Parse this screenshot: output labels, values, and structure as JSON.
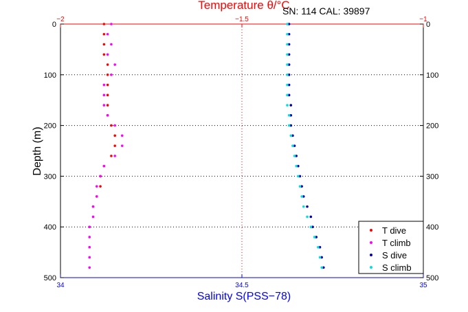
{
  "chart_data": {
    "type": "scatter",
    "title_top": "Temperature θ/°C",
    "top_axis_color": "#ff0000",
    "bottom_axis_color": "#0000ff",
    "annotation": "SN: 114  CAL: 39897",
    "ylabel": "Depth (m)",
    "xlabel_bottom": "Salinity S(PSS−78)",
    "ylim": [
      0,
      500
    ],
    "y_reversed": true,
    "y_ticks": [
      0,
      100,
      200,
      300,
      400,
      500
    ],
    "y_tick_labels": [
      "0",
      "100",
      "200",
      "300",
      "400",
      "500"
    ],
    "x_top_lim": [
      -2,
      -1
    ],
    "x_top_ticks": [
      -2,
      -1.5,
      -1
    ],
    "x_top_tick_labels": [
      "−2",
      "−1.5",
      "−1"
    ],
    "x_bottom_lim": [
      34,
      35
    ],
    "x_bottom_ticks": [
      34,
      34.5,
      35
    ],
    "x_bottom_tick_labels": [
      "34",
      "34.5",
      "35"
    ],
    "grid": true,
    "legend_position": "bottom-right",
    "series": [
      {
        "name": "T dive",
        "axis": "top",
        "color": "#ff0000",
        "depth": [
          0,
          20,
          40,
          60,
          80,
          100,
          120,
          140,
          160,
          180,
          200,
          220,
          240,
          260,
          280,
          300,
          320,
          340,
          360
        ],
        "values": [
          -1.88,
          -1.88,
          -1.88,
          -1.88,
          -1.87,
          -1.87,
          -1.87,
          -1.87,
          -1.87,
          -1.87,
          -1.86,
          -1.85,
          -1.85,
          -1.86,
          -1.88,
          -1.89,
          -1.89,
          -1.9,
          -1.91
        ]
      },
      {
        "name": "T climb",
        "axis": "top",
        "color": "#ff00ff",
        "depth": [
          0,
          20,
          40,
          60,
          80,
          100,
          120,
          140,
          160,
          180,
          200,
          220,
          240,
          260,
          280,
          300,
          320,
          340,
          360,
          380,
          400,
          420,
          440,
          460,
          480
        ],
        "values": [
          -1.86,
          -1.87,
          -1.86,
          -1.87,
          -1.85,
          -1.86,
          -1.88,
          -1.88,
          -1.88,
          -1.87,
          -1.85,
          -1.83,
          -1.83,
          -1.85,
          -1.88,
          -1.89,
          -1.9,
          -1.9,
          -1.91,
          -1.91,
          -1.92,
          -1.92,
          -1.92,
          -1.92,
          -1.92
        ]
      },
      {
        "name": "S dive",
        "axis": "bottom",
        "color": "#0000b0",
        "depth": [
          0,
          20,
          40,
          60,
          80,
          100,
          120,
          140,
          160,
          180,
          200,
          220,
          240,
          260,
          280,
          300,
          320,
          340,
          360,
          380,
          400,
          420,
          440,
          460,
          480
        ],
        "values": [
          34.63,
          34.63,
          34.63,
          34.63,
          34.63,
          34.63,
          34.63,
          34.63,
          34.635,
          34.635,
          34.635,
          34.64,
          34.645,
          34.65,
          34.655,
          34.66,
          34.665,
          34.67,
          34.68,
          34.69,
          34.695,
          34.705,
          34.715,
          34.72,
          34.725
        ]
      },
      {
        "name": "S climb",
        "axis": "bottom",
        "color": "#00e0e0",
        "depth": [
          0,
          20,
          40,
          60,
          80,
          100,
          120,
          140,
          160,
          180,
          200,
          220,
          240,
          260,
          280,
          300,
          320,
          340,
          360,
          380,
          400,
          420,
          440,
          460,
          480
        ],
        "values": [
          34.625,
          34.625,
          34.625,
          34.625,
          34.625,
          34.625,
          34.625,
          34.625,
          34.625,
          34.63,
          34.63,
          34.635,
          34.64,
          34.645,
          34.65,
          34.655,
          34.66,
          34.665,
          34.67,
          34.68,
          34.69,
          34.7,
          34.71,
          34.715,
          34.72
        ]
      }
    ]
  }
}
